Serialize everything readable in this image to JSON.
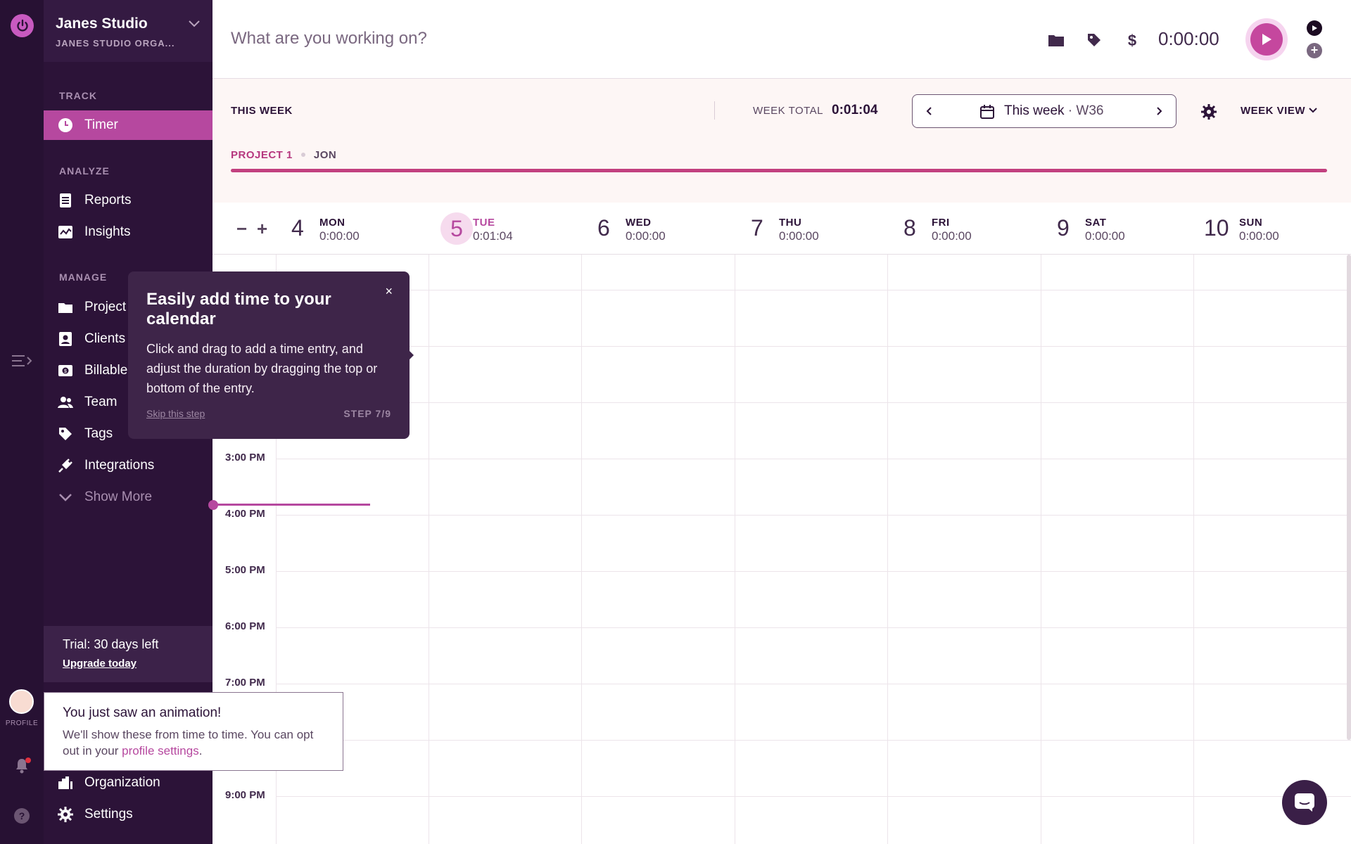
{
  "workspace": {
    "name": "Janes Studio",
    "org": "JANES STUDIO ORGA..."
  },
  "sidebar": {
    "sections": {
      "track": "TRACK",
      "analyze": "ANALYZE",
      "manage": "MANAGE"
    },
    "items": [
      {
        "label": "Timer",
        "icon": "clock-icon"
      },
      {
        "label": "Reports",
        "icon": "report-icon"
      },
      {
        "label": "Insights",
        "icon": "insights-icon"
      },
      {
        "label": "Project",
        "icon": "folder-icon"
      },
      {
        "label": "Clients",
        "icon": "client-icon"
      },
      {
        "label": "Billable",
        "icon": "billable-icon"
      },
      {
        "label": "Team",
        "icon": "team-icon"
      },
      {
        "label": "Tags",
        "icon": "tag-icon"
      },
      {
        "label": "Integrations",
        "icon": "plug-icon"
      },
      {
        "label": "Show More",
        "icon": "chevron-down-icon"
      },
      {
        "label": "Organization",
        "icon": "building-icon"
      },
      {
        "label": "Settings",
        "icon": "gear-icon"
      }
    ],
    "trial": {
      "text": "Trial: 30 days left",
      "link": "Upgrade today"
    }
  },
  "rail": {
    "profile_label": "PROFILE"
  },
  "topbar": {
    "placeholder": "What are you working on?",
    "timer": "0:00:00"
  },
  "weekbar": {
    "label": "THIS WEEK",
    "total_label": "WEEK TOTAL",
    "total": "0:01:04",
    "picker_label": "This week",
    "picker_sep": " · ",
    "picker_week": "W36",
    "view": "WEEK VIEW",
    "project": "PROJECT 1",
    "client": "JON"
  },
  "zoom": {
    "minus": "−",
    "plus": "+"
  },
  "days": [
    {
      "num": "4",
      "name": "MON",
      "dur": "0:00:00"
    },
    {
      "num": "5",
      "name": "TUE",
      "dur": "0:01:04",
      "today": true
    },
    {
      "num": "6",
      "name": "WED",
      "dur": "0:00:00"
    },
    {
      "num": "7",
      "name": "THU",
      "dur": "0:00:00"
    },
    {
      "num": "8",
      "name": "FRI",
      "dur": "0:00:00"
    },
    {
      "num": "9",
      "name": "SAT",
      "dur": "0:00:00"
    },
    {
      "num": "10",
      "name": "SUN",
      "dur": "0:00:00"
    }
  ],
  "hours": [
    "3:00 PM",
    "4:00 PM",
    "5:00 PM",
    "6:00 PM",
    "7:00 PM",
    "9:00 PM"
  ],
  "tooltip": {
    "close": "×",
    "title": "Easily add time to your calendar",
    "body": "Click and drag to add a time entry, and adjust the duration by dragging the top or bottom of the entry.",
    "skip": "Skip this step",
    "step": "STEP 7/9"
  },
  "notice": {
    "title": "You just saw an animation!",
    "body": "We'll show these from time to time. You can opt out in your ",
    "link": "profile settings",
    "end": "."
  },
  "colors": {
    "accent": "#b6489f",
    "sidebar": "#2c1338",
    "rail": "#271133"
  }
}
